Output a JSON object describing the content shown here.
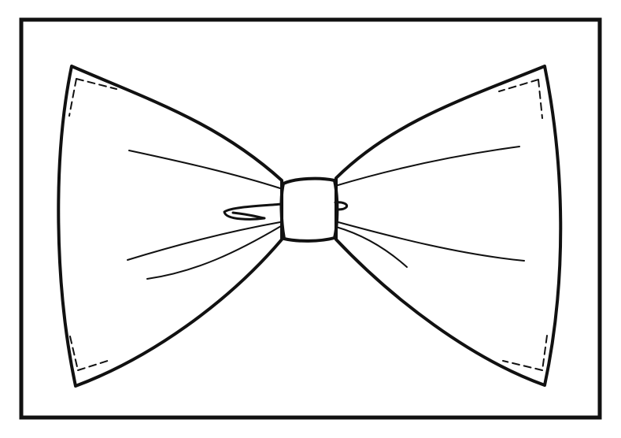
{
  "image": {
    "subject": "bow-tie-line-art",
    "colors": {
      "background": "#ffffff",
      "stroke": "#111111"
    }
  }
}
